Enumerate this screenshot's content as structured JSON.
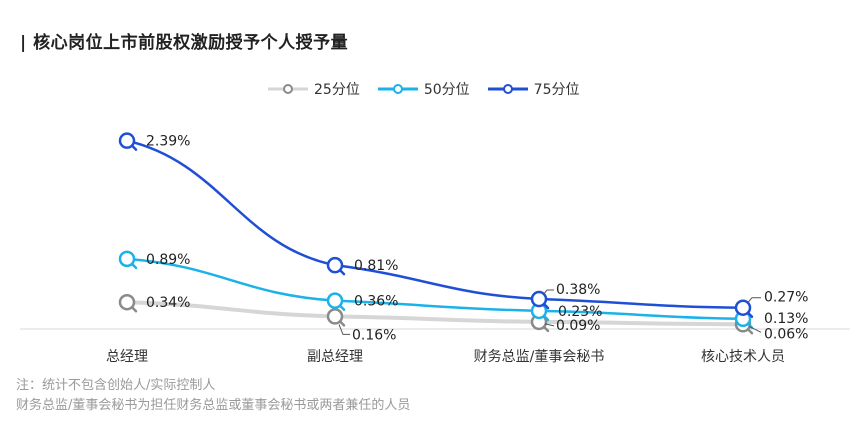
{
  "title": "| 核心岗位上市前股权激励授予个人授予量",
  "legend": [
    {
      "label": "25分位",
      "color": "#8a8a8a",
      "line": "#d6d6d6"
    },
    {
      "label": "50分位",
      "color": "#1ab2e8",
      "line": "#1ab2e8"
    },
    {
      "label": "75分位",
      "color": "#1f4fd6",
      "line": "#1f4fd6"
    }
  ],
  "notes": [
    "注：统计不包含创始人/实际控制人",
    "财务总监/董事会秘书为担任财务总监或董事会秘书或两者兼任的人员"
  ],
  "chart_data": {
    "type": "line",
    "title": "核心岗位上市前股权激励授予个人授予量",
    "categories": [
      "总经理",
      "副总经理",
      "财务总监/董事会秘书",
      "核心技术人员"
    ],
    "series": [
      {
        "name": "25分位",
        "values": [
          0.34,
          0.16,
          0.09,
          0.06
        ],
        "labels": [
          "0.34%",
          "0.16%",
          "0.09%",
          "0.06%"
        ]
      },
      {
        "name": "50分位",
        "values": [
          0.89,
          0.36,
          0.23,
          0.13
        ],
        "labels": [
          "0.89%",
          "0.36%",
          "0.23%",
          "0.13%"
        ]
      },
      {
        "name": "75分位",
        "values": [
          2.39,
          0.81,
          0.38,
          0.27
        ],
        "labels": [
          "2.39%",
          "0.81%",
          "0.38%",
          "0.27%"
        ]
      }
    ],
    "ylim": [
      0,
      2.5
    ],
    "grid": false,
    "legend_position": "top"
  }
}
